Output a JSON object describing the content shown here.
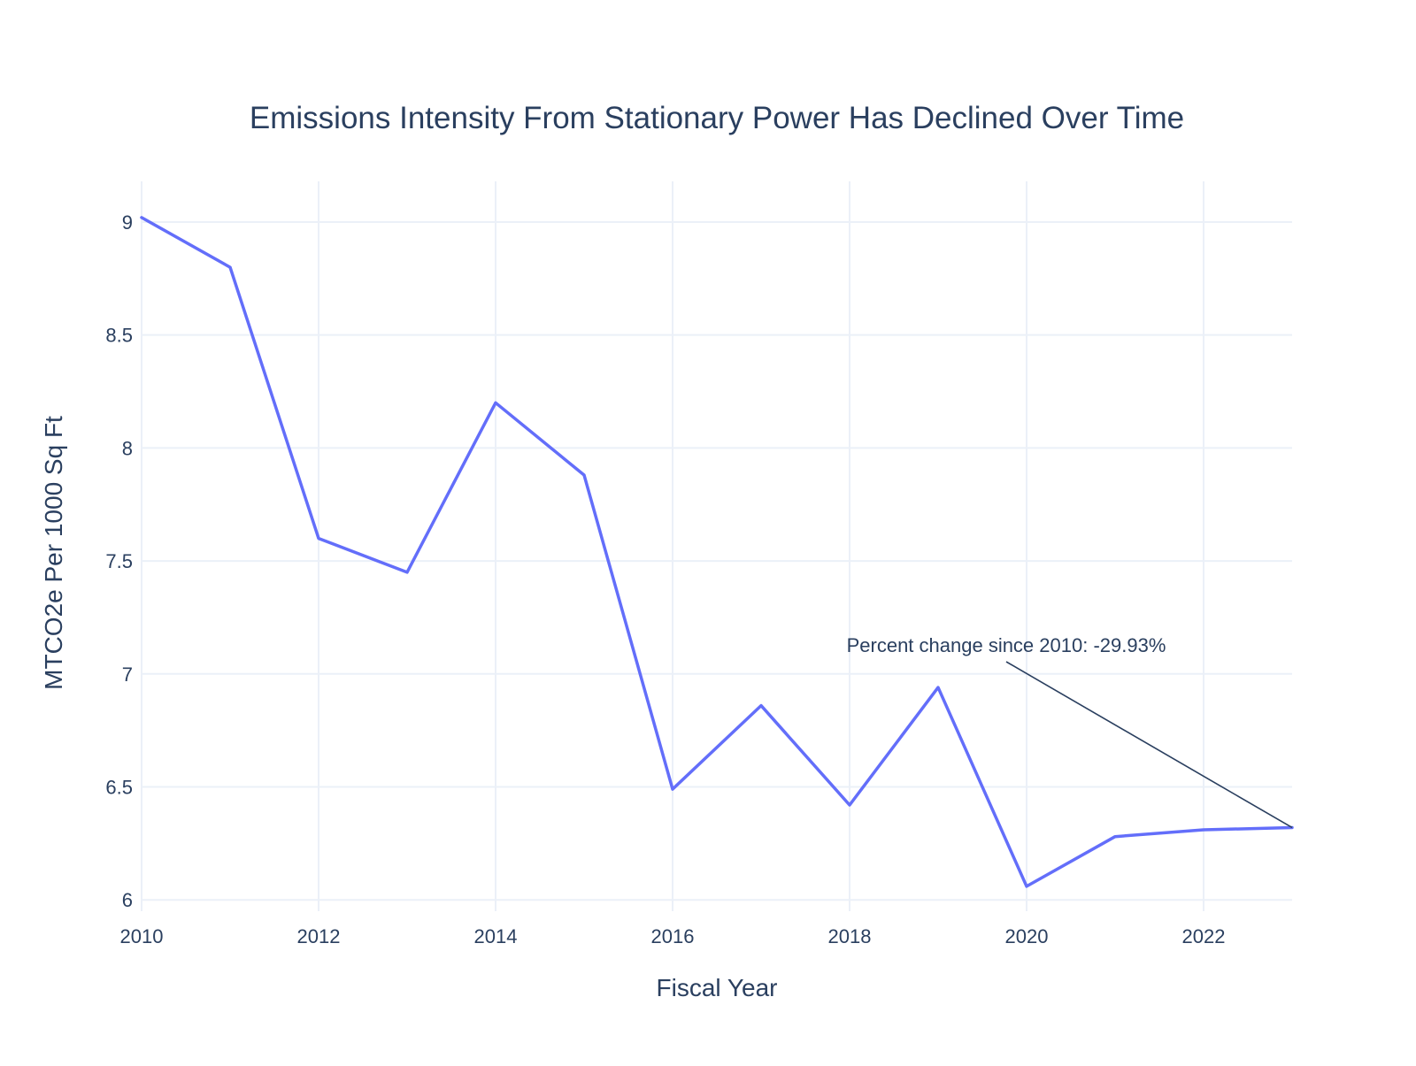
{
  "chart_data": {
    "type": "line",
    "title": "Emissions Intensity From Stationary Power Has Declined Over Time",
    "xlabel": "Fiscal Year",
    "ylabel": "MTCO2e Per 1000 Sq Ft",
    "x": [
      2010,
      2011,
      2012,
      2013,
      2014,
      2015,
      2016,
      2017,
      2018,
      2019,
      2020,
      2021,
      2022,
      2023
    ],
    "series": [
      {
        "values": [
          9.02,
          8.8,
          7.6,
          7.45,
          8.2,
          7.88,
          6.49,
          6.86,
          6.42,
          6.94,
          6.06,
          6.28,
          6.31,
          6.32
        ]
      }
    ],
    "xlim": [
      2010,
      2023
    ],
    "ylim": [
      5.95,
      9.18
    ],
    "x_ticks": [
      2010,
      2012,
      2014,
      2016,
      2018,
      2020,
      2022
    ],
    "x_tick_labels": [
      "2010",
      "2012",
      "2014",
      "2016",
      "2018",
      "2020",
      "2022"
    ],
    "y_ticks": [
      6,
      6.5,
      7,
      7.5,
      8,
      8.5,
      9
    ],
    "y_tick_labels": [
      "6",
      "6.5",
      "7",
      "7.5",
      "8",
      "8.5",
      "9"
    ],
    "grid": true,
    "legend": "none",
    "line_color": "#636efa",
    "grid_color": "#ebf0f8",
    "text_color": "#2a3f5f",
    "annotation": {
      "text": "Percent change since 2010: -29.93%",
      "point_x": 2023,
      "point_y": 6.32
    }
  }
}
